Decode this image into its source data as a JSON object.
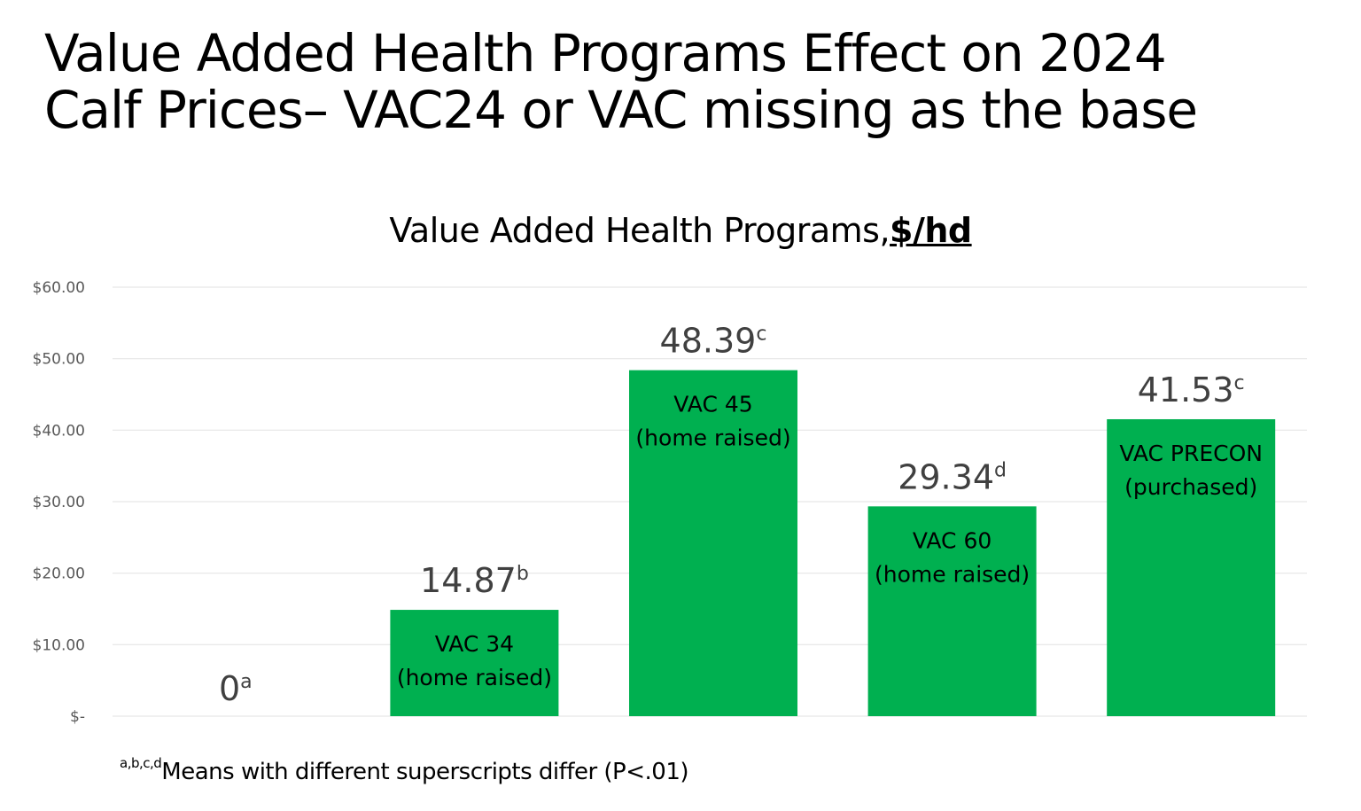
{
  "slide": {
    "title_line1": "Value Added Health Programs Effect on 2024",
    "title_line2": "Calf Prices– VAC24 or VAC missing as the base",
    "footnote_superscripts": "a,b,c,d",
    "footnote_text": "Means with different superscripts differ (P<.01)"
  },
  "colors": {
    "bar": "#00B050",
    "grid": "#E6E6E6",
    "tick_label": "#595959",
    "data_label": "#404040"
  },
  "chart_data": {
    "type": "bar",
    "title": "Value Added Health Programs,",
    "title_unit": "$/hd",
    "xlabel": "",
    "ylabel": "",
    "ylim": [
      0,
      60
    ],
    "grid": true,
    "legend": "none",
    "yticks": [
      0,
      10,
      20,
      30,
      40,
      50,
      60
    ],
    "ytick_labels": [
      "$-",
      "$10.00",
      "$20.00",
      "$30.00",
      "$40.00",
      "$50.00",
      "$60.00"
    ],
    "categories": [
      {
        "line1": "",
        "line2": ""
      },
      {
        "line1": "VAC 34",
        "line2": "(home raised)"
      },
      {
        "line1": "VAC 45",
        "line2": "(home raised)"
      },
      {
        "line1": "VAC 60",
        "line2": "(home raised)"
      },
      {
        "line1": "VAC PRECON",
        "line2": "(purchased)"
      }
    ],
    "values": [
      0,
      14.87,
      48.39,
      29.34,
      41.53
    ],
    "data_labels": [
      "0",
      "14.87",
      "48.39",
      "29.34",
      "41.53"
    ],
    "superscripts": [
      "a",
      "b",
      "c",
      "d",
      "c"
    ]
  }
}
